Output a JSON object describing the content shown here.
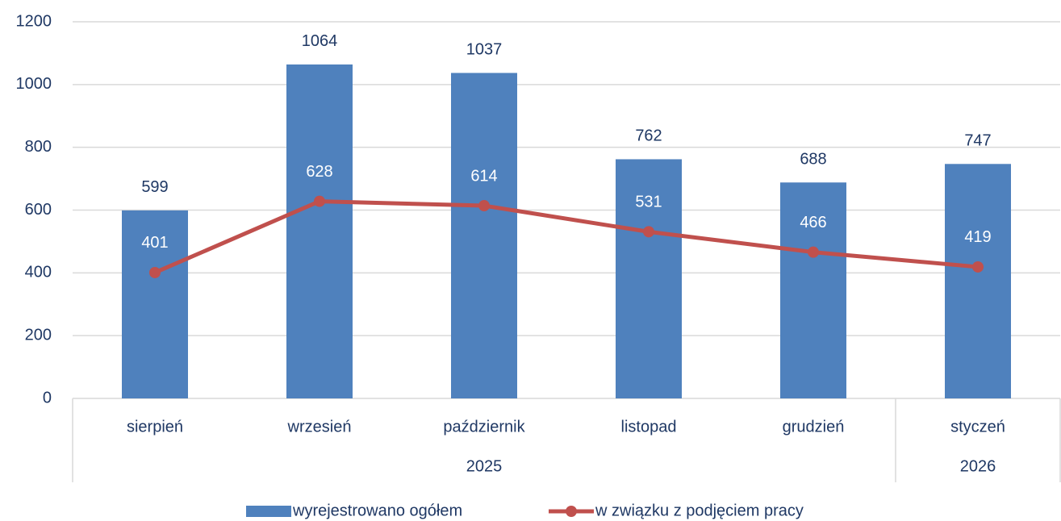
{
  "chart_data": {
    "type": "bar",
    "categories": [
      "sierpień",
      "wrzesień",
      "październik",
      "listopad",
      "grudzień",
      "styczeń"
    ],
    "category_groups": [
      {
        "label": "2025",
        "count": 5
      },
      {
        "label": "2026",
        "count": 1
      }
    ],
    "series": [
      {
        "name": "wyrejestrowano ogółem",
        "type": "bar",
        "color": "#4f81bd",
        "values": [
          599,
          1064,
          1037,
          762,
          688,
          747
        ]
      },
      {
        "name": "w związku z podjęciem pracy",
        "type": "line",
        "color": "#c0504d",
        "values": [
          401,
          628,
          614,
          531,
          466,
          419
        ]
      }
    ],
    "ylim": [
      0,
      1200
    ],
    "yticks": [
      0,
      200,
      400,
      600,
      800,
      1000,
      1200
    ],
    "grid": true,
    "legend": "bottom"
  }
}
